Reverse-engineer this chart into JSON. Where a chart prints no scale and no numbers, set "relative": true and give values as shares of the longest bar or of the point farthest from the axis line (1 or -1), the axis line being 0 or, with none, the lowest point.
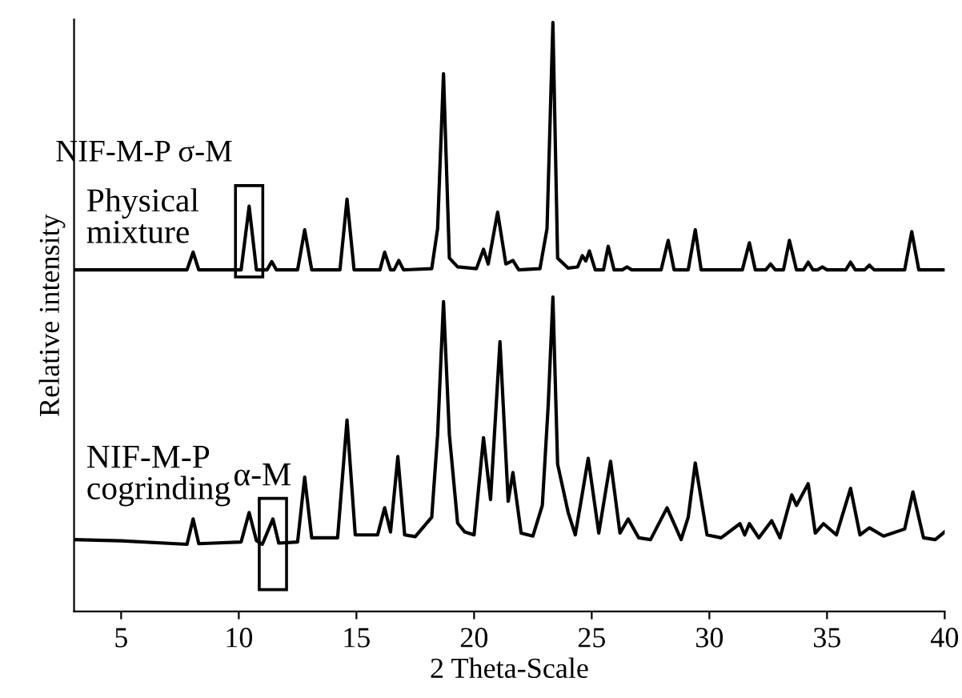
{
  "chart_data": {
    "type": "line",
    "relative": true,
    "xlabel": "2 Theta-Scale",
    "ylabel": "Relative intensity",
    "xlim": [
      3,
      40
    ],
    "xticks": [
      5,
      10,
      15,
      20,
      25,
      30,
      35,
      40
    ],
    "grid": false,
    "legend": false,
    "marker": "none",
    "line_style": "solid",
    "series": [
      {
        "color": "#000000",
        "x": [
          3,
          7.8,
          8.06,
          8.3,
          10.1,
          10.44,
          10.75,
          11.2,
          11.4,
          11.6,
          12.5,
          12.8,
          13.1,
          14.3,
          14.6,
          14.9,
          16.0,
          16.2,
          16.45,
          16.6,
          16.8,
          17.0,
          18.2,
          18.45,
          18.7,
          18.95,
          19.3,
          20.1,
          20.4,
          20.6,
          21.0,
          21.35,
          21.65,
          21.9,
          22.8,
          23.1,
          23.35,
          23.55,
          24.0,
          24.4,
          24.6,
          24.75,
          24.9,
          25.15,
          25.5,
          25.7,
          25.95,
          26.3,
          26.5,
          26.7,
          27.95,
          28.25,
          28.5,
          29.1,
          29.4,
          29.65,
          31.4,
          31.7,
          31.95,
          32.4,
          32.6,
          32.8,
          33.15,
          33.4,
          33.7,
          34.0,
          34.2,
          34.4,
          34.6,
          34.8,
          35.0,
          35.8,
          36.0,
          36.2,
          36.6,
          36.8,
          37.0,
          38.3,
          38.6,
          38.9,
          39.95
        ],
        "values": [
          0.58,
          0.58,
          0.61,
          0.58,
          0.58,
          0.688,
          0.58,
          0.58,
          0.594,
          0.58,
          0.58,
          0.648,
          0.58,
          0.58,
          0.7,
          0.58,
          0.58,
          0.61,
          0.58,
          0.58,
          0.596,
          0.58,
          0.582,
          0.65,
          0.913,
          0.6,
          0.585,
          0.582,
          0.615,
          0.59,
          0.678,
          0.59,
          0.596,
          0.58,
          0.582,
          0.65,
          1.0,
          0.6,
          0.583,
          0.585,
          0.604,
          0.595,
          0.612,
          0.58,
          0.58,
          0.62,
          0.58,
          0.58,
          0.585,
          0.58,
          0.58,
          0.63,
          0.58,
          0.58,
          0.648,
          0.58,
          0.58,
          0.626,
          0.58,
          0.58,
          0.59,
          0.58,
          0.58,
          0.63,
          0.58,
          0.58,
          0.593,
          0.58,
          0.58,
          0.585,
          0.58,
          0.58,
          0.593,
          0.58,
          0.58,
          0.588,
          0.58,
          0.58,
          0.645,
          0.58,
          0.58
        ]
      },
      {
        "color": "#000000",
        "x": [
          3,
          5,
          7.8,
          8.06,
          8.3,
          10.1,
          10.44,
          10.75,
          11.0,
          11.45,
          11.7,
          12.5,
          12.8,
          13.1,
          14.2,
          14.6,
          14.95,
          15.9,
          16.2,
          16.45,
          16.76,
          17.05,
          17.5,
          18.2,
          18.45,
          18.7,
          18.95,
          19.3,
          19.6,
          20.0,
          20.4,
          20.7,
          21.1,
          21.45,
          21.65,
          22.0,
          22.5,
          22.9,
          23.15,
          23.35,
          23.55,
          24.0,
          24.3,
          24.6,
          24.85,
          25.3,
          25.8,
          26.2,
          26.55,
          27.0,
          27.5,
          28.2,
          28.8,
          29.1,
          29.4,
          29.9,
          30.5,
          31.3,
          31.5,
          31.7,
          32.1,
          32.65,
          33.0,
          33.5,
          33.7,
          34.2,
          34.5,
          34.85,
          35.4,
          36.0,
          36.4,
          36.8,
          37.4,
          38.3,
          38.65,
          39.1,
          39.6,
          40
        ],
        "values": [
          0.122,
          0.12,
          0.114,
          0.157,
          0.115,
          0.118,
          0.168,
          0.12,
          0.114,
          0.157,
          0.116,
          0.118,
          0.228,
          0.125,
          0.125,
          0.325,
          0.13,
          0.13,
          0.176,
          0.135,
          0.263,
          0.13,
          0.127,
          0.16,
          0.3,
          0.526,
          0.3,
          0.15,
          0.135,
          0.13,
          0.295,
          0.19,
          0.458,
          0.187,
          0.236,
          0.133,
          0.128,
          0.18,
          0.35,
          0.534,
          0.25,
          0.168,
          0.13,
          0.2,
          0.26,
          0.133,
          0.255,
          0.133,
          0.157,
          0.125,
          0.122,
          0.176,
          0.122,
          0.16,
          0.252,
          0.13,
          0.125,
          0.149,
          0.13,
          0.149,
          0.125,
          0.154,
          0.125,
          0.198,
          0.18,
          0.217,
          0.133,
          0.149,
          0.13,
          0.209,
          0.13,
          0.142,
          0.128,
          0.14,
          0.203,
          0.125,
          0.122,
          0.135
        ]
      }
    ],
    "annotations": [
      {
        "text": "NIF-M-P σ-M",
        "x": 10.44,
        "y": 0.688
      },
      "Physical\nmixture",
      "NIF-M-P\ncogrinding",
      {
        "text": "α-M",
        "x": 11.45,
        "y": 0.157
      }
    ]
  }
}
